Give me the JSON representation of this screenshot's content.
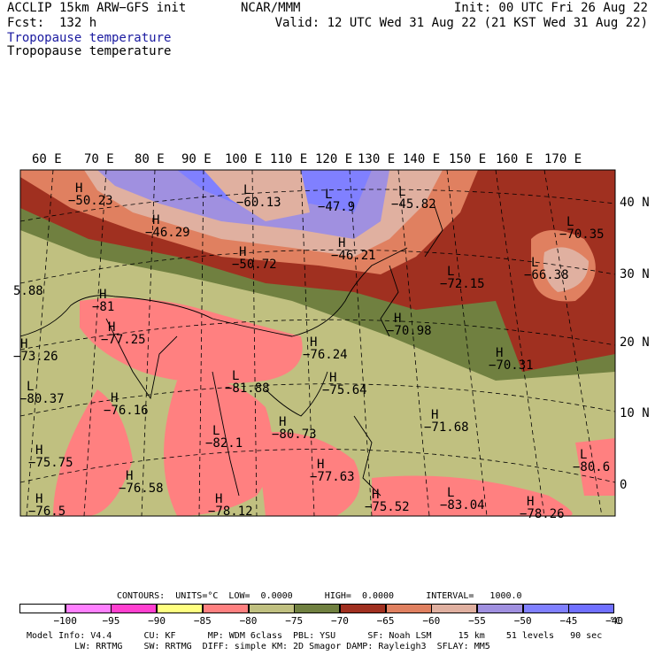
{
  "header": {
    "model": "ACCLIP 15km ARW−GFS init",
    "center": "NCAR/MMM",
    "init": "Init: 00 UTC Fri 26 Aug 22",
    "fcst": "Fcst:  132 h",
    "valid": "Valid: 12 UTC Wed 31 Aug 22 (21 KST Wed 31 Aug 22)",
    "field1": "Tropopause temperature",
    "field2": "Tropopause temperature"
  },
  "map": {
    "lon_labels": [
      "60 E",
      "70 E",
      "80 E",
      "90 E",
      "100 E",
      "110 E",
      "120 E",
      "130 E",
      "140 E",
      "150 E",
      "160 E",
      "170 E"
    ],
    "lat_labels": [
      "40 N",
      "30 N",
      "20 N",
      "10 N",
      "0"
    ],
    "pressure_centers": [
      {
        "kind": "H",
        "value": "−50.23"
      },
      {
        "kind": "L",
        "value": "−60.13"
      },
      {
        "kind": "L",
        "value": "−47.9"
      },
      {
        "kind": "L",
        "value": "−45.82"
      },
      {
        "kind": "H",
        "value": "−46.29"
      },
      {
        "kind": "H",
        "value": "−50.72"
      },
      {
        "kind": "H",
        "value": "−46.21"
      },
      {
        "kind": "L",
        "value": "−70.35"
      },
      {
        "kind": "L",
        "value": "−66.38"
      },
      {
        "kind": "L",
        "value": "−72.15"
      },
      {
        "kind": "H",
        "value": "−70.98"
      },
      {
        "kind": "H",
        "value": "−70.31"
      },
      {
        "kind": "H",
        "value": "−81"
      },
      {
        "kind": "H",
        "value": "−77.25"
      },
      {
        "kind": "H",
        "value": "−76.24"
      },
      {
        "kind": "H",
        "value": "−73.26"
      },
      {
        "kind": "L",
        "value": "−80.37"
      },
      {
        "kind": "H",
        "value": "−76.16"
      },
      {
        "kind": "L",
        "value": "−81.88"
      },
      {
        "kind": "H",
        "value": "−75.64"
      },
      {
        "kind": "L",
        "value": "−82.1"
      },
      {
        "kind": "H",
        "value": "−80.73"
      },
      {
        "kind": "H",
        "value": "−71.68"
      },
      {
        "kind": "H",
        "value": "−75.75"
      },
      {
        "kind": "H",
        "value": "−76.58"
      },
      {
        "kind": "H",
        "value": "−77.63"
      },
      {
        "kind": "L",
        "value": "−80.6"
      },
      {
        "kind": "H",
        "value": "−76.5"
      },
      {
        "kind": "H",
        "value": "−78.12"
      },
      {
        "kind": "H",
        "value": "−75.52"
      },
      {
        "kind": "L",
        "value": "−83.04"
      },
      {
        "kind": "H",
        "value": "−78.26"
      },
      {
        "kind": "",
        "value": "5.88"
      }
    ]
  },
  "contours_line": {
    "label": "CONTOURS:  UNITS=°C  LOW=  0.0000      HIGH=  0.0000      INTERVAL=   1000.0"
  },
  "colorbar": {
    "unit": "°C",
    "labels": [
      "−100",
      "−95",
      "−90",
      "−85",
      "−80",
      "−75",
      "−70",
      "−65",
      "−60",
      "−55",
      "−50",
      "−45",
      "−40"
    ],
    "colors": [
      "#ffffff",
      "#ff80ff",
      "#ff40d0",
      "#ffff80",
      "#ff8080",
      "#c0c080",
      "#708040",
      "#a03020",
      "#e08060",
      "#e0b0a0",
      "#a090e0",
      "#8080ff",
      "#7070ff"
    ]
  },
  "footer": {
    "line1": "Model Info: V4.4      CU: KF      MP: WDM 6class  PBL: YSU      SF: Noah LSM     15 km    51 levels   90 sec",
    "line2": "         LW: RRTMG    SW: RRTMG  DIFF: simple KM: 2D Smagor DAMP: Rayleigh3  SFLAY: MM5"
  }
}
